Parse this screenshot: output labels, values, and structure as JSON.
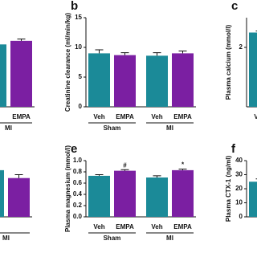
{
  "chart_data": [
    {
      "type": "bar",
      "categories": [
        null,
        "EMPA"
      ],
      "groups": [
        "MI"
      ],
      "values": [
        10.5,
        11.1
      ],
      "errors": [
        0.3,
        0.3
      ],
      "colors": [
        "#1b8a98",
        "#7b1fa2"
      ],
      "ylim": [
        0,
        15
      ]
    },
    {
      "type": "bar",
      "letter": "b",
      "ylabel": "Creatinine clearance (ml/min/kg)",
      "categories": [
        "Veh",
        "EMPA",
        "Veh",
        "EMPA"
      ],
      "groups": [
        "Sham",
        "MI"
      ],
      "values": [
        9.0,
        8.7,
        8.6,
        9.0
      ],
      "errors": [
        0.6,
        0.4,
        0.5,
        0.4
      ],
      "colors": [
        "#1b8a98",
        "#7b1fa2",
        "#1b8a98",
        "#7b1fa2"
      ],
      "ylim": [
        0,
        15
      ],
      "yticks": [
        0,
        5,
        10,
        15
      ]
    },
    {
      "type": "bar",
      "letter": "c",
      "ylabel": "Plasma calcium (mmol/l)",
      "categories": [
        "Veh"
      ],
      "values": [
        2.5
      ],
      "errors": [
        0.05
      ],
      "colors": [
        "#1b8a98"
      ],
      "ylim": [
        0,
        3
      ],
      "yticks": [
        2
      ]
    },
    {
      "type": "bar",
      "categories": [
        null,
        null
      ],
      "groups": [
        "MI"
      ],
      "values": [
        0.83,
        0.69
      ],
      "errors": [
        0.03,
        0.06
      ],
      "colors": [
        "#1b8a98",
        "#7b1fa2"
      ],
      "ylim": [
        0,
        1
      ]
    },
    {
      "type": "bar",
      "letter": "e",
      "ylabel": "Plasma magnesium (mmol/l)",
      "categories": [
        "Veh",
        "EMPA",
        "Veh",
        "EMPA"
      ],
      "groups": [
        "Sham",
        "MI"
      ],
      "values": [
        0.73,
        0.82,
        0.7,
        0.83
      ],
      "errors": [
        0.02,
        0.02,
        0.03,
        0.02
      ],
      "annotations": [
        {
          "index": 1,
          "text": "#"
        },
        {
          "index": 3,
          "text": "*"
        }
      ],
      "colors": [
        "#1b8a98",
        "#7b1fa2",
        "#1b8a98",
        "#7b1fa2"
      ],
      "ylim": [
        0,
        1
      ],
      "yticks": [
        {
          "value": 0,
          "label": "0.0"
        },
        0.2,
        0.4,
        0.6,
        0.8,
        {
          "value": 1,
          "label": "1.0"
        }
      ]
    },
    {
      "type": "bar",
      "letter": "f",
      "ylabel": "Plasma CTX-1 (ng/ml)",
      "categories": [
        null
      ],
      "values": [
        25
      ],
      "errors": [
        2
      ],
      "colors": [
        "#1b8a98"
      ],
      "ylim": [
        0,
        40
      ],
      "yticks": [
        0,
        10,
        20,
        30,
        40
      ]
    }
  ]
}
